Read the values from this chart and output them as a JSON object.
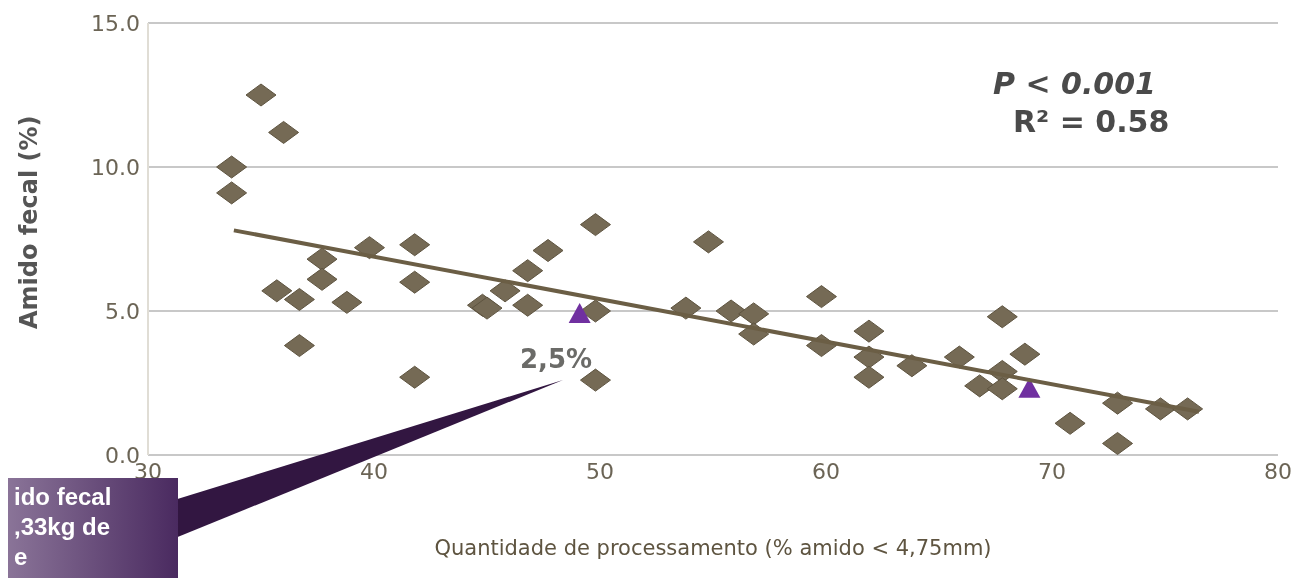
{
  "chart_data": {
    "type": "scatter",
    "xlabel": "Quantidade de processamento (% amido < 4,75mm)",
    "ylabel": "Amido fecal (%)",
    "xlim": [
      30,
      80
    ],
    "xticks": [
      30,
      40,
      50,
      60,
      70,
      80
    ],
    "ylim": [
      0,
      15
    ],
    "yticks": [
      {
        "value": 0,
        "label": "0.0"
      },
      {
        "value": 5,
        "label": "5.0"
      },
      {
        "value": 10,
        "label": "10.0"
      },
      {
        "value": 15,
        "label": "15.0"
      }
    ],
    "grid": "y",
    "legend": false,
    "series": [
      {
        "type": "scatter",
        "marker": "diamond",
        "color": "#756a55",
        "x": [
          35,
          36,
          33.7,
          33.7,
          37.7,
          37.7,
          35.7,
          36.7,
          38.8,
          36.7,
          39.8,
          41.8,
          41.8,
          41.8,
          44.8,
          45,
          45.8,
          46.8,
          46.8,
          47.7,
          49.8,
          49.8,
          49.8,
          54.8,
          53.8,
          55.8,
          56.8,
          56.8,
          59.8,
          59.8,
          61.9,
          61.9,
          61.9,
          63.8,
          65.9,
          67.8,
          67.8,
          66.8,
          67.8,
          68.8,
          70.8,
          72.9,
          72.9,
          74.8,
          76
        ],
        "values": [
          12.5,
          11.2,
          10,
          9.1,
          6.8,
          6.1,
          5.7,
          5.4,
          5.3,
          3.8,
          7.2,
          7.3,
          6,
          2.7,
          5.2,
          5.1,
          5.7,
          6.4,
          5.2,
          7.1,
          8,
          5,
          2.6,
          7.4,
          5.1,
          5,
          4.9,
          4.2,
          5.5,
          3.8,
          4.3,
          3.4,
          2.7,
          3.1,
          3.4,
          4.8,
          2.9,
          2.4,
          2.3,
          3.5,
          1.1,
          1.8,
          0.4,
          1.6,
          1.6
        ]
      },
      {
        "type": "scatter",
        "marker": "triangle",
        "color": "#7030a0",
        "x": [
          49.1,
          69
        ],
        "values": [
          4.9,
          2.3
        ]
      },
      {
        "type": "line",
        "color": "#6b5e45",
        "x": [
          33.8,
          76.5
        ],
        "values": [
          7.8,
          1.5
        ]
      }
    ],
    "annotations": [
      "P < 0.001",
      "R² = 0.58",
      "2,5%",
      "ido fecal",
      ",33kg de",
      "e"
    ]
  }
}
